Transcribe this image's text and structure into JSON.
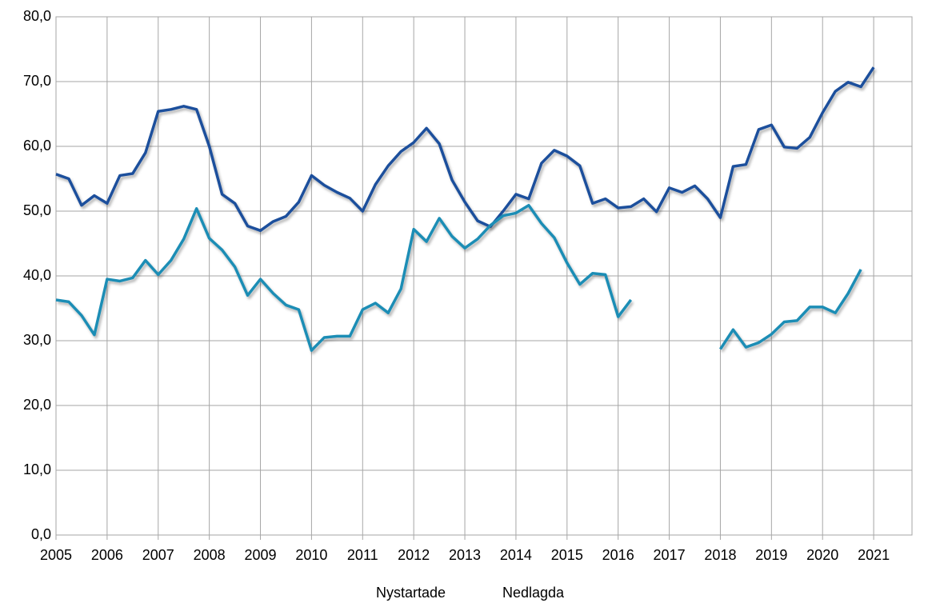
{
  "chart_data": {
    "type": "line",
    "x": [
      2005,
      2005.25,
      2005.5,
      2005.75,
      2006,
      2006.25,
      2006.5,
      2006.75,
      2007,
      2007.25,
      2007.5,
      2007.75,
      2008,
      2008.25,
      2008.5,
      2008.75,
      2009,
      2009.25,
      2009.5,
      2009.75,
      2010,
      2010.25,
      2010.5,
      2010.75,
      2011,
      2011.25,
      2011.5,
      2011.75,
      2012,
      2012.25,
      2012.5,
      2012.75,
      2013,
      2013.25,
      2013.5,
      2013.75,
      2014,
      2014.25,
      2014.5,
      2014.75,
      2015,
      2015.25,
      2015.5,
      2015.75,
      2016,
      2016.25,
      2016.5,
      2016.75,
      2017,
      2017.25,
      2017.5,
      2017.75,
      2018,
      2018.25,
      2018.5,
      2018.75,
      2019,
      2019.25,
      2019.5,
      2019.75,
      2020,
      2020.25,
      2020.5,
      2020.75,
      2021
    ],
    "series": [
      {
        "name": "Nystartade",
        "color": "#1c4f9c",
        "values": [
          55.7,
          55.0,
          50.9,
          52.4,
          51.2,
          55.5,
          55.8,
          59.0,
          65.4,
          65.7,
          66.2,
          65.7,
          60.0,
          52.6,
          51.2,
          47.7,
          47.0,
          48.4,
          49.2,
          51.4,
          55.5,
          54.0,
          52.9,
          52.0,
          50.0,
          54.1,
          57.0,
          59.2,
          60.6,
          62.8,
          60.4,
          54.8,
          51.4,
          48.5,
          47.6,
          50.0,
          52.6,
          51.9,
          57.4,
          59.4,
          58.5,
          57.0,
          51.2,
          51.9,
          50.5,
          50.7,
          51.9,
          49.9,
          53.6,
          52.9,
          53.9,
          51.9,
          49.0,
          56.9,
          57.2,
          62.6,
          63.3,
          59.9,
          59.7,
          61.4,
          65.2,
          68.5,
          69.9,
          69.2,
          72.2
        ]
      },
      {
        "name": "Nedlagda",
        "color": "#1a8db5",
        "values": [
          36.3,
          36.0,
          33.9,
          30.9,
          39.5,
          39.2,
          39.7,
          42.4,
          40.2,
          42.4,
          45.7,
          50.4,
          45.8,
          44.0,
          41.4,
          37.0,
          39.5,
          37.3,
          35.5,
          34.8,
          28.5,
          30.5,
          30.7,
          30.7,
          34.8,
          35.8,
          34.3,
          38.0,
          47.2,
          45.3,
          48.9,
          46.1,
          44.3,
          45.7,
          47.8,
          49.3,
          49.7,
          50.9,
          48.1,
          45.9,
          42.0,
          38.7,
          40.4,
          40.2,
          33.7,
          36.3,
          null,
          null,
          null,
          null,
          null,
          null,
          28.7,
          31.7,
          29.0,
          29.7,
          31.0,
          32.9,
          33.1,
          35.2,
          35.2,
          34.3,
          37.3,
          41.0,
          null
        ]
      }
    ],
    "xlim": [
      2005,
      2021.75
    ],
    "xticks": [
      2005,
      2006,
      2007,
      2008,
      2009,
      2010,
      2011,
      2012,
      2013,
      2014,
      2015,
      2016,
      2017,
      2018,
      2019,
      2020,
      2021
    ],
    "ylim": [
      0,
      80
    ],
    "yticks": [
      {
        "value": 0,
        "label": "0,0"
      },
      {
        "value": 10,
        "label": "10,0"
      },
      {
        "value": 20,
        "label": "20,0"
      },
      {
        "value": 30,
        "label": "30,0"
      },
      {
        "value": 40,
        "label": "40,0"
      },
      {
        "value": 50,
        "label": "50,0"
      },
      {
        "value": 60,
        "label": "60,0"
      },
      {
        "value": 70,
        "label": "70,0"
      },
      {
        "value": 80,
        "label": "80,0"
      }
    ],
    "grid": true,
    "legend": "bottom"
  }
}
